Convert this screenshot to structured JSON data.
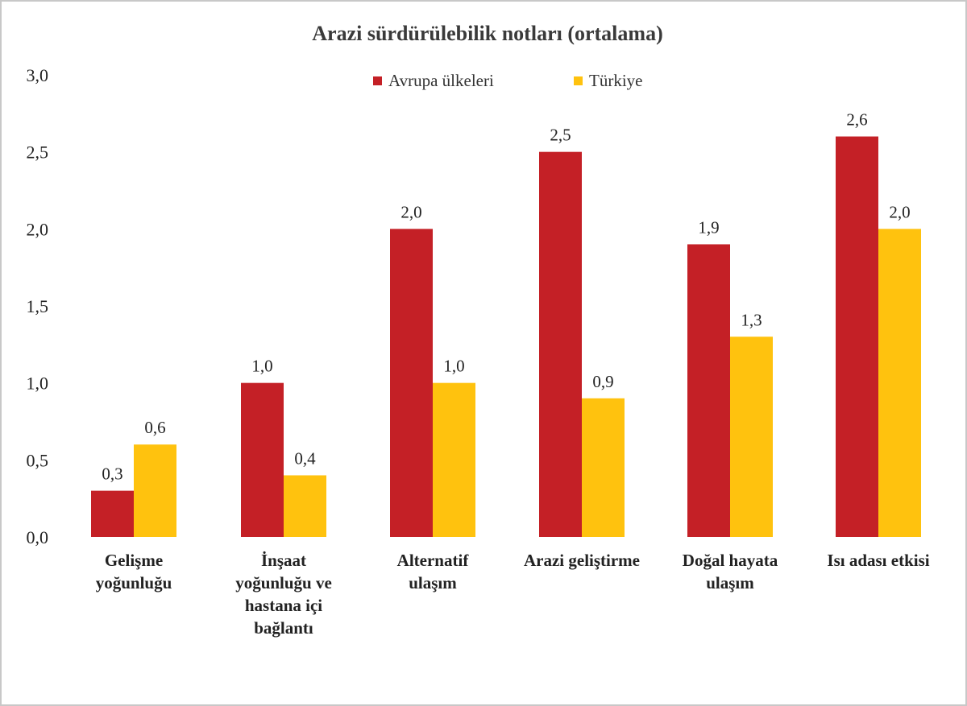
{
  "chart_data": {
    "type": "bar",
    "title": "Arazi  sürdürülebilik  notları (ortalama)",
    "xlabel": "",
    "ylabel": "",
    "ylim": [
      0,
      3
    ],
    "yticks": [
      "0,0",
      "0,5",
      "1,0",
      "1,5",
      "2,0",
      "2,5",
      "3,0"
    ],
    "ytick_values": [
      0,
      0.5,
      1,
      1.5,
      2,
      2.5,
      3
    ],
    "grid": false,
    "legend_position": "top",
    "categories": [
      [
        "Gelişme",
        "yoğunluğu"
      ],
      [
        "İnşaat",
        "yoğunluğu ve",
        "hastana içi",
        "bağlantı"
      ],
      [
        "Alternatif",
        "ulaşım"
      ],
      [
        "Arazi geliştirme"
      ],
      [
        "Doğal hayata",
        "ulaşım"
      ],
      [
        "Isı adası etkisi"
      ]
    ],
    "series": [
      {
        "name": "Avrupa ülkeleri",
        "color": "#c42026",
        "values": [
          0.3,
          1.0,
          2.0,
          2.5,
          1.9,
          2.6
        ],
        "labels": [
          "0,3",
          "1,0",
          "2,0",
          "2,5",
          "1,9",
          "2,6"
        ]
      },
      {
        "name": "Türkiye",
        "color": "#ffc20e",
        "values": [
          0.6,
          0.4,
          1.0,
          0.9,
          1.3,
          2.0
        ],
        "labels": [
          "0,6",
          "0,4",
          "1,0",
          "0,9",
          "1,3",
          "2,0"
        ]
      }
    ]
  }
}
